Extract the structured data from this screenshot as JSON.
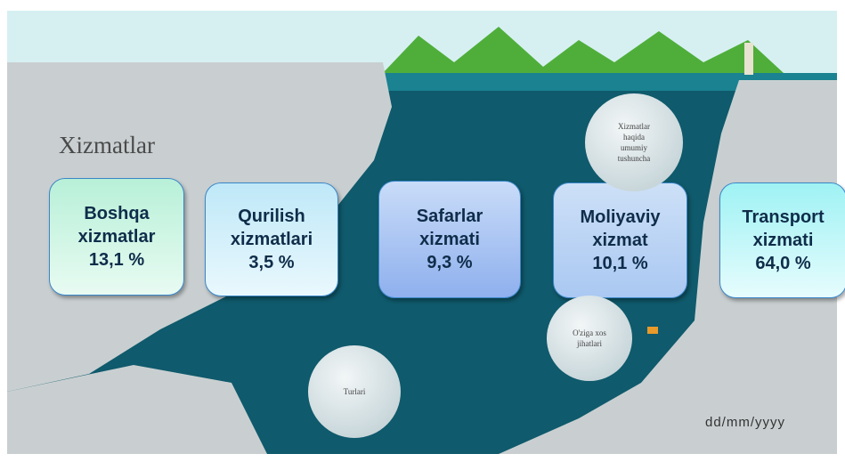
{
  "slide": {
    "title": "Xizmatlar",
    "date": "dd/mm/yyyy",
    "boxes": [
      {
        "lines": [
          "Boshqa",
          "xizmatlar",
          "13,1 %"
        ]
      },
      {
        "lines": [
          "Qurilish",
          "xizmatlari",
          "3,5 %"
        ]
      },
      {
        "lines": [
          "Safarlar",
          "xizmati",
          "9,3 %"
        ]
      },
      {
        "lines": [
          "Moliyaviy",
          "xizmat",
          "10,1 %"
        ]
      },
      {
        "lines": [
          "Transport",
          "xizmati",
          "64,0 %"
        ]
      }
    ],
    "bubbles": [
      {
        "lines": [
          "Xizmatlar",
          "haqida",
          "umumiy",
          "tushuncha"
        ]
      },
      {
        "lines": [
          "O'ziga xos",
          "jihatlari"
        ]
      },
      {
        "lines": [
          "Turlari"
        ]
      }
    ]
  }
}
